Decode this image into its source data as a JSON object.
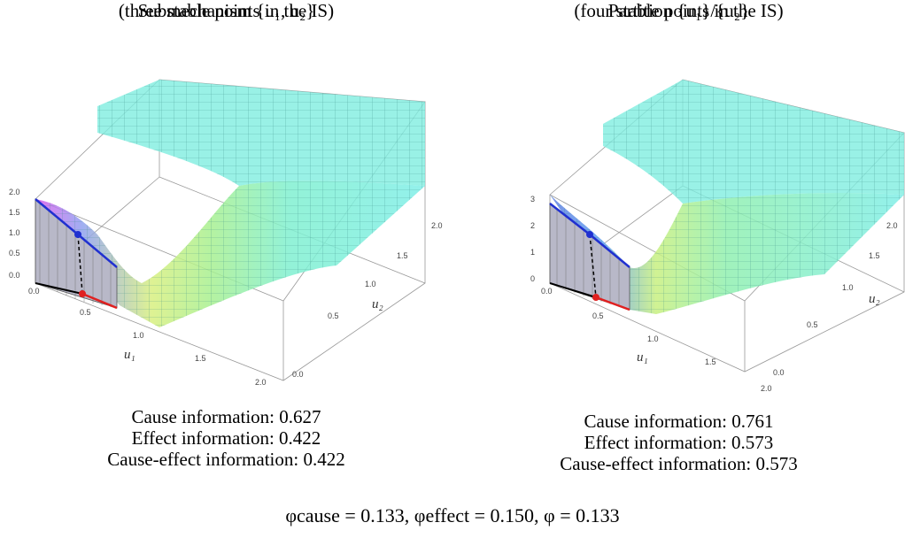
{
  "left": {
    "title_line1": "Submechanism {u₁, u₂}",
    "title_line2": "(three stable points in the IS)",
    "info": [
      "Cause information: 0.627",
      "Effect information: 0.422",
      "Cause-effect information: 0.422"
    ],
    "z_ticks": [
      "2.0",
      "1.5",
      "1.0",
      "0.5",
      "0.0"
    ],
    "u1_ticks": [
      "0.0",
      "0.5",
      "1.0",
      "1.5",
      "2.0"
    ],
    "u2_ticks": [
      "2.0",
      "1.5",
      "1.0",
      "0.5",
      "0.0"
    ],
    "u1_label": "u₁",
    "u2_label": "u₂"
  },
  "right": {
    "title_line1": "Partition {u₁}/{u₂}",
    "title_line2": "(four stable points in the IS)",
    "info": [
      "Cause information: 0.761",
      "Effect information: 0.573",
      "Cause-effect information: 0.573"
    ],
    "z_ticks": [
      "3",
      "2",
      "1",
      "0"
    ],
    "u1_ticks": [
      "0.0",
      "0.5",
      "1.0",
      "1.5",
      "2.0"
    ],
    "u2_ticks": [
      "2.0",
      "1.5",
      "1.0",
      "0.5",
      "0.0"
    ],
    "u1_label": "u₁",
    "u2_label": "u₂"
  },
  "bottom_formula": "φcause = 0.133,    φeffect = 0.150,    φ = 0.133",
  "colors": {
    "surface": "#7ff0e0",
    "mesh": "#3a8c86",
    "magenta": "#e060f0",
    "yellow": "#e8f070",
    "red": "#e02020",
    "blue": "#2030d0"
  }
}
